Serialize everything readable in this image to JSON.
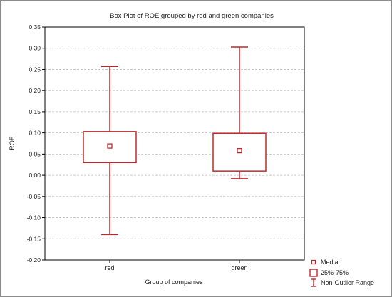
{
  "chart_data": {
    "type": "boxplot",
    "title": "Box Plot of ROE grouped by red and green companies",
    "xlabel": "Group of companies",
    "ylabel": "ROE",
    "ylim": [
      -0.2,
      0.35
    ],
    "y_ticks": [
      "-0,20",
      "-0,15",
      "-0,10",
      "-0,05",
      "0,00",
      "0,05",
      "0,10",
      "0,15",
      "0,20",
      "0,25",
      "0,30",
      "0,35"
    ],
    "y_tick_values": [
      -0.2,
      -0.15,
      -0.1,
      -0.05,
      0.0,
      0.05,
      0.1,
      0.15,
      0.2,
      0.25,
      0.3,
      0.35
    ],
    "grid": true,
    "legend_position": "bottom-right",
    "box_color": "#c0282d",
    "categories": [
      "red",
      "green"
    ],
    "boxes": [
      {
        "group": "red",
        "min": -0.14,
        "q1": 0.03,
        "median": 0.069,
        "q3": 0.103,
        "max": 0.257
      },
      {
        "group": "green",
        "min": -0.008,
        "q1": 0.01,
        "median": 0.058,
        "q3": 0.099,
        "max": 0.303
      }
    ],
    "legend": [
      {
        "label": "Median",
        "icon": "small-square-icon"
      },
      {
        "label": "25%-75%",
        "icon": "box-icon"
      },
      {
        "label": "Non-Outlier Range",
        "icon": "whisker-icon"
      }
    ]
  }
}
